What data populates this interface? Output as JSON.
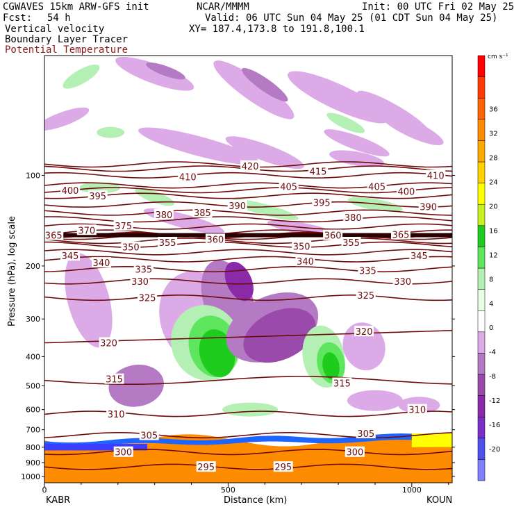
{
  "header": {
    "model": "CGWAVES 15km ARW-GFS init",
    "org": "NCAR/MMMM",
    "init": "Init: 00 UTC Fri 02 May 25",
    "fcst_label": "Fcst:",
    "fcst_value": "54 h",
    "valid": "Valid: 06 UTC Sun 04 May 25 (01 CDT Sun 04 May 25)",
    "field1": "Vertical velocity",
    "xy": "XY= 187.4,173.8 to 191.8,100.1",
    "field2": "Boundary Layer Tracer",
    "field3": "Potential Temperature",
    "field3_color": "#8b1a1a"
  },
  "axes": {
    "ylabel": "Pressure (hPa), log scale",
    "xlabel": "Distance (km)",
    "left_station": "KABR",
    "right_station": "KOUN"
  },
  "chart_data": {
    "type": "heatmap",
    "x_range_km": [
      0,
      1110
    ],
    "x_ticks": [
      0,
      500,
      1000
    ],
    "y_scale": "log",
    "y_range_hpa": [
      1050,
      40
    ],
    "y_ticks": [
      100,
      200,
      300,
      400,
      500,
      600,
      700,
      800,
      900,
      1000
    ],
    "colorbar": {
      "units": "cm s⁻¹",
      "labels": [
        36,
        32,
        28,
        24,
        20,
        16,
        12,
        8,
        4,
        0,
        -4,
        -8,
        -12,
        -16,
        -20
      ],
      "colors": [
        "#7f7fff",
        "#5050ee",
        "#7a30c8",
        "#8a2aa8",
        "#9a4aaa",
        "#b47ac4",
        "#dcaae6",
        "#ffffff",
        "#e6ffe6",
        "#b4f0b4",
        "#5ee65e",
        "#1ecc1e",
        "#c8f01e",
        "#ffff00",
        "#ffd200",
        "#ffaa00",
        "#ff8c00",
        "#ff6400",
        "#ff3c00",
        "#ff0000"
      ]
    },
    "theta_contours": [
      {
        "value": 295,
        "p": 930
      },
      {
        "value": 300,
        "p": 830
      },
      {
        "value": 305,
        "p": 730
      },
      {
        "value": 310,
        "p": 620
      },
      {
        "value": 315,
        "p": 480
      },
      {
        "value": 320,
        "p": 360
      },
      {
        "value": 325,
        "p": 255
      },
      {
        "value": 330,
        "p": 225
      },
      {
        "value": 335,
        "p": 205
      },
      {
        "value": 340,
        "p": 190
      },
      {
        "value": 345,
        "p": 180
      },
      {
        "value": 350,
        "p": 170
      },
      {
        "value": 355,
        "p": 165
      },
      {
        "value": 360,
        "p": 160
      },
      {
        "value": 365,
        "p": 158
      },
      {
        "value": 370,
        "p": 155
      },
      {
        "value": 375,
        "p": 148
      },
      {
        "value": 380,
        "p": 140
      },
      {
        "value": 385,
        "p": 133
      },
      {
        "value": 390,
        "p": 125
      },
      {
        "value": 395,
        "p": 117
      },
      {
        "value": 400,
        "p": 112
      },
      {
        "value": 405,
        "p": 108
      },
      {
        "value": 410,
        "p": 100
      },
      {
        "value": 415,
        "p": 95
      },
      {
        "value": 420,
        "p": 92
      }
    ],
    "contour_labels": [
      {
        "text": "295",
        "x": 440,
        "p": 930
      },
      {
        "text": "295",
        "x": 650,
        "p": 930
      },
      {
        "text": "300",
        "x": 215,
        "p": 830
      },
      {
        "text": "300",
        "x": 845,
        "p": 830
      },
      {
        "text": "305",
        "x": 285,
        "p": 730
      },
      {
        "text": "305",
        "x": 875,
        "p": 720
      },
      {
        "text": "310",
        "x": 195,
        "p": 620
      },
      {
        "text": "310",
        "x": 1015,
        "p": 600
      },
      {
        "text": "315",
        "x": 190,
        "p": 475
      },
      {
        "text": "315",
        "x": 810,
        "p": 490
      },
      {
        "text": "320",
        "x": 175,
        "p": 360
      },
      {
        "text": "320",
        "x": 870,
        "p": 330
      },
      {
        "text": "325",
        "x": 280,
        "p": 255
      },
      {
        "text": "325",
        "x": 875,
        "p": 250
      },
      {
        "text": "330",
        "x": 260,
        "p": 225
      },
      {
        "text": "330",
        "x": 975,
        "p": 225
      },
      {
        "text": "335",
        "x": 270,
        "p": 205
      },
      {
        "text": "335",
        "x": 880,
        "p": 207
      },
      {
        "text": "340",
        "x": 155,
        "p": 195
      },
      {
        "text": "340",
        "x": 710,
        "p": 193
      },
      {
        "text": "345",
        "x": 70,
        "p": 185
      },
      {
        "text": "345",
        "x": 1020,
        "p": 185
      },
      {
        "text": "350",
        "x": 235,
        "p": 173
      },
      {
        "text": "350",
        "x": 700,
        "p": 172
      },
      {
        "text": "355",
        "x": 335,
        "p": 167
      },
      {
        "text": "355",
        "x": 835,
        "p": 167
      },
      {
        "text": "360",
        "x": 465,
        "p": 163
      },
      {
        "text": "360",
        "x": 785,
        "p": 158
      },
      {
        "text": "365",
        "x": 25,
        "p": 158
      },
      {
        "text": "365",
        "x": 970,
        "p": 157
      },
      {
        "text": "370",
        "x": 115,
        "p": 152
      },
      {
        "text": "375",
        "x": 215,
        "p": 147
      },
      {
        "text": "380",
        "x": 325,
        "p": 135
      },
      {
        "text": "380",
        "x": 840,
        "p": 138
      },
      {
        "text": "385",
        "x": 430,
        "p": 133
      },
      {
        "text": "390",
        "x": 525,
        "p": 126
      },
      {
        "text": "390",
        "x": 1045,
        "p": 127
      },
      {
        "text": "395",
        "x": 145,
        "p": 117
      },
      {
        "text": "395",
        "x": 755,
        "p": 123
      },
      {
        "text": "400",
        "x": 70,
        "p": 112
      },
      {
        "text": "400",
        "x": 985,
        "p": 113
      },
      {
        "text": "405",
        "x": 665,
        "p": 109
      },
      {
        "text": "405",
        "x": 905,
        "p": 109
      },
      {
        "text": "410",
        "x": 390,
        "p": 101
      },
      {
        "text": "410",
        "x": 1065,
        "p": 100
      },
      {
        "text": "415",
        "x": 745,
        "p": 97
      },
      {
        "text": "420",
        "x": 560,
        "p": 93
      }
    ]
  }
}
